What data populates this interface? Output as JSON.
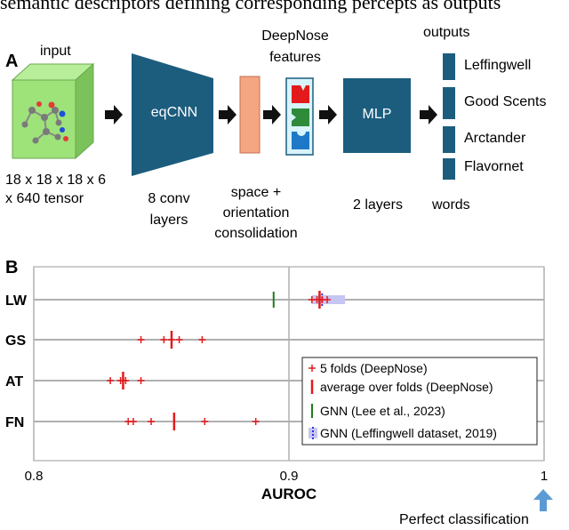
{
  "caption_fragment": "semantic descriptors defining corresponding percepts as outputs",
  "panel_a": {
    "label": "A",
    "input_title": "input",
    "input_dims_line1": "18 x 18 x 18 x 6",
    "input_dims_line2": "x 640 tensor",
    "eqcnn_label": "eqCNN",
    "eqcnn_caption_line1": "8 conv",
    "eqcnn_caption_line2": "layers",
    "consolidation_line1": "space +",
    "consolidation_line2": "orientation",
    "consolidation_line3": "consolidation",
    "features_line1": "DeepNose",
    "features_line2": "features",
    "mlp_label": "MLP",
    "mlp_caption": "2 layers",
    "outputs_title": "outputs",
    "outputs_caption": "words",
    "outputs": [
      "Leffingwell",
      "Good Scents",
      "Arctander",
      "Flavornet"
    ],
    "colors": {
      "block": "#1c5d7e",
      "consolidation": "#f4a582",
      "cube": "#9ee27a"
    }
  },
  "panel_b": {
    "label": "B",
    "chart_data": {
      "type": "scatter",
      "xlabel": "AUROC",
      "xlim": [
        0.8,
        1.0
      ],
      "x_ticks": [
        "0.8",
        "0.9",
        "1"
      ],
      "categories": [
        "LW",
        "GS",
        "AT",
        "FN"
      ],
      "folds": {
        "LW": [
          0.909,
          0.911,
          0.912,
          0.913,
          0.915
        ],
        "GS": [
          0.842,
          0.851,
          0.854,
          0.857,
          0.866
        ],
        "AT": [
          0.83,
          0.834,
          0.835,
          0.836,
          0.842
        ],
        "FN": [
          0.837,
          0.839,
          0.846,
          0.867,
          0.887
        ]
      },
      "average": {
        "LW": 0.912,
        "GS": 0.854,
        "AT": 0.835,
        "FN": 0.855
      },
      "gnn_lee_2023": {
        "LW": 0.894
      },
      "gnn_leffingwell_2019": {
        "LW": {
          "mean": 0.913,
          "low": 0.909,
          "high": 0.922
        }
      },
      "legend": [
        "5 folds (DeepNose)",
        "average over folds (DeepNose)",
        "GNN (Lee et al., 2023)",
        "GNN (Leffingwell dataset, 2019)"
      ],
      "colors": {
        "folds": "#e31a1c",
        "average": "#e31a1c",
        "gnn_lee": "#1b7d1b",
        "gnn_leff_band": "#c6c6f2",
        "gnn_leff_line": "#1e1ee0"
      }
    },
    "annotation": "Perfect classification"
  }
}
